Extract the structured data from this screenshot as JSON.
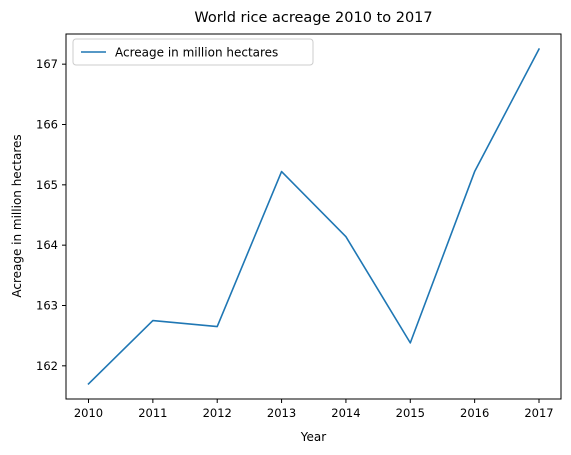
{
  "chart_data": {
    "type": "line",
    "title": "World rice acreage 2010 to 2017",
    "xlabel": "Year",
    "ylabel": "Acreage in million hectares",
    "x": [
      "2010",
      "2011",
      "2012",
      "2013",
      "2014",
      "2015",
      "2016",
      "2017"
    ],
    "series": [
      {
        "name": "Acreage in million hectares",
        "color": "#1f77b4",
        "values": [
          161.7,
          162.75,
          162.65,
          165.22,
          164.14,
          162.38,
          165.22,
          167.25
        ]
      }
    ],
    "yticks": [
      "162",
      "163",
      "164",
      "165",
      "166",
      "167"
    ],
    "ylim": [
      161.45,
      167.5
    ],
    "grid": false,
    "legend_position": "top-left"
  }
}
